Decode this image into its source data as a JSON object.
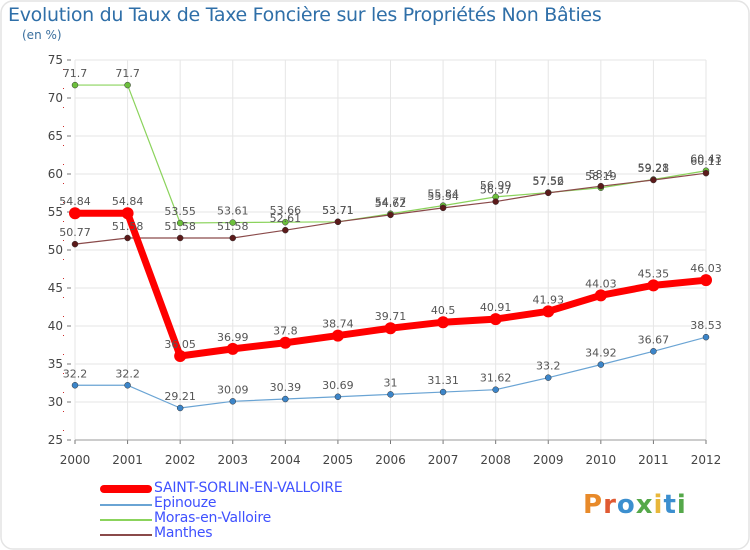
{
  "colors": {
    "title": "#2f6fa8",
    "frame": "#eeeeee",
    "grid": "#e6e6e6",
    "axis_tick": "#cc2b2b"
  },
  "header": {
    "title": "Evolution du Taux de Taxe Foncière sur les Propriétés Non Bâties",
    "unit": "(en %)"
  },
  "logo": {
    "letters": [
      "P",
      "r",
      "o",
      "x",
      "i",
      "t",
      "i"
    ],
    "colors": [
      "#e88a2a",
      "#e05a33",
      "#3c8fcf",
      "#55a84a",
      "#e8b73a",
      "#3c8fcf",
      "#55a84a"
    ]
  },
  "chart_data": {
    "type": "line",
    "title": "Evolution du Taux de Taxe Foncière sur les Propriétés Non Bâties",
    "ylabel": "(en %)",
    "xlabel": "",
    "ylim": [
      25,
      75
    ],
    "yticks": [
      25,
      30,
      35,
      40,
      45,
      50,
      55,
      60,
      65,
      70,
      75
    ],
    "x": [
      "2000",
      "2001",
      "2002",
      "2003",
      "2004",
      "2005",
      "2006",
      "2007",
      "2008",
      "2009",
      "2010",
      "2011",
      "2012"
    ],
    "series": [
      {
        "name": "Moras-en-Valloire",
        "color": "#8bd35c",
        "marker": "#6cbf3c",
        "width": 1.2,
        "values": [
          71.7,
          71.7,
          53.55,
          53.61,
          53.66,
          53.71,
          54.77,
          55.84,
          56.99,
          57.56,
          58.19,
          59.28,
          60.43
        ],
        "labels": [
          "71.7",
          "71.7",
          "53.55",
          "53.61",
          "53.66",
          "53.71",
          "54.77",
          "55.84",
          "56.99",
          "57.56",
          "58.19",
          "59.28",
          "60.43"
        ]
      },
      {
        "name": "Manthes",
        "color": "#8a4a4a",
        "marker": "#5c1a1a",
        "width": 1.2,
        "values": [
          50.77,
          51.58,
          51.58,
          51.58,
          52.61,
          53.71,
          54.62,
          55.54,
          56.37,
          57.52,
          58.4,
          59.21,
          60.11
        ],
        "labels": [
          "50.77",
          "51.58",
          "51.58",
          "51.58",
          "52.61",
          "53.71",
          "54.62",
          "55.54",
          "56.37",
          "57.52",
          "58.4",
          "59.21",
          "60.11"
        ]
      },
      {
        "name": "Epinouze",
        "color": "#6aa4d4",
        "marker": "#3c85c9",
        "width": 1.2,
        "values": [
          32.2,
          32.2,
          29.21,
          30.09,
          30.39,
          30.69,
          31,
          31.31,
          31.62,
          33.2,
          34.92,
          36.67,
          38.53
        ],
        "labels": [
          "32.2",
          "32.2",
          "29.21",
          "30.09",
          "30.39",
          "30.69",
          "31",
          "31.31",
          "31.62",
          "33.2",
          "34.92",
          "36.67",
          "38.53"
        ]
      },
      {
        "name": "SAINT-SORLIN-EN-VALLOIRE",
        "color": "#ff0000",
        "marker": "#ff0000",
        "width": 7,
        "values": [
          54.84,
          54.84,
          36.05,
          36.99,
          37.8,
          38.74,
          39.71,
          40.5,
          40.91,
          41.93,
          44.03,
          45.35,
          46.03
        ],
        "labels": [
          "54.84",
          "54.84",
          "36.05",
          "36.99",
          "37.8",
          "38.74",
          "39.71",
          "40.5",
          "40.91",
          "41.93",
          "44.03",
          "45.35",
          "46.03"
        ]
      }
    ],
    "legend": [
      {
        "name": "SAINT-SORLIN-EN-VALLOIRE",
        "color": "#ff0000",
        "text_color": "#3f51ff",
        "thick": true
      },
      {
        "name": "Epinouze",
        "color": "#6aa4d4",
        "text_color": "#3f51ff",
        "thick": false
      },
      {
        "name": "Moras-en-Valloire",
        "color": "#8bd35c",
        "text_color": "#3f51ff",
        "thick": false
      },
      {
        "name": "Manthes",
        "color": "#8a4a4a",
        "text_color": "#3f51ff",
        "thick": false
      }
    ]
  }
}
